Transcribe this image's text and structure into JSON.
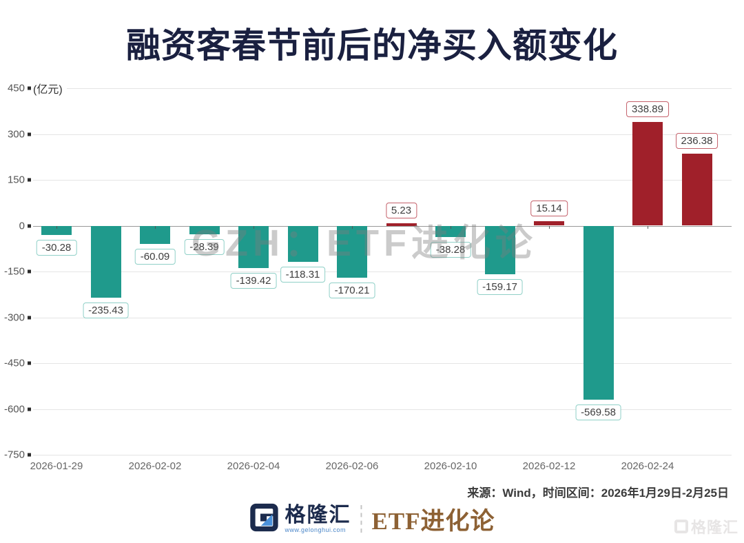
{
  "title": "融资客春节前后的净买入额变化",
  "chart_data": {
    "type": "bar",
    "title": "融资客春节前后的净买入额变化",
    "unit_label": "(亿元)",
    "ylabel": "亿元",
    "ylim": [
      -750,
      450
    ],
    "yticks": [
      450,
      300,
      150,
      0,
      -150,
      -300,
      -450,
      -600,
      -750
    ],
    "values": [
      -30.28,
      -235.43,
      -60.09,
      -28.39,
      -139.42,
      -118.31,
      -170.21,
      5.23,
      -38.28,
      -159.17,
      15.14,
      -569.58,
      338.89,
      236.38
    ],
    "x_tick_labels": [
      "2026-01-29",
      "2026-02-02",
      "2026-02-04",
      "2026-02-06",
      "2026-02-10",
      "2026-02-12",
      "2026-02-24"
    ],
    "x_label_bar_indices": [
      0,
      2,
      4,
      6,
      8,
      10,
      12
    ],
    "grid": true,
    "legend": false,
    "colors": {
      "negative_bar": "#1f9a8c",
      "positive_bar": "#a0202a",
      "negative_label_border": "#8fd0c7",
      "positive_label_border": "#c4606a",
      "grid_line": "#e4e4e4",
      "zero_line": "#979797",
      "title_color": "#1a2040"
    }
  },
  "watermark_center": "GZH：ETF进化论",
  "source_note": "来源：Wind，时间区间：2026年1月29日-2月25日",
  "footer": {
    "brand_name": "格隆汇",
    "brand_site": "www.gelonghui.com",
    "channel_name": "ETF进化论"
  },
  "watermark_corner": "格隆汇"
}
